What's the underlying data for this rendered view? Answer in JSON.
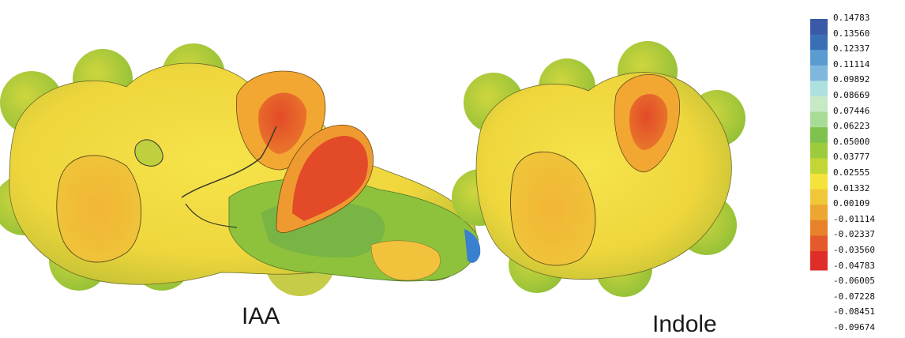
{
  "labels": {
    "iaa": "IAA",
    "indole": "Indole"
  },
  "colorbar": {
    "ticks": [
      "0.14783",
      "0.13560",
      "0.12337",
      "0.11114",
      "0.09892",
      "0.08669",
      "0.07446",
      "0.06223",
      "0.05000",
      "0.03777",
      "0.02555",
      "0.01332",
      "0.00109",
      "-0.01114",
      "-0.02337",
      "-0.03560",
      "-0.04783",
      "-0.06005",
      "-0.07228",
      "-0.08451",
      "-0.09674"
    ],
    "colors": [
      "#3a5aa8",
      "#3b6fb5",
      "#5a9bd0",
      "#7fb8dc",
      "#aee0e0",
      "#c6e9c6",
      "#a8dc96",
      "#7ec24d",
      "#9ccc3c",
      "#c2d636",
      "#f3e33a",
      "#f1c73a",
      "#eea632",
      "#e8822a",
      "#e55a2a",
      "#df2e28"
    ]
  },
  "colors": {
    "yellow": "#f0dc3c",
    "orange": "#f2b338",
    "red": "#e24a28",
    "green": "#95c53a",
    "light_green": "#c0d33a",
    "blue": "#3a7fd0"
  }
}
